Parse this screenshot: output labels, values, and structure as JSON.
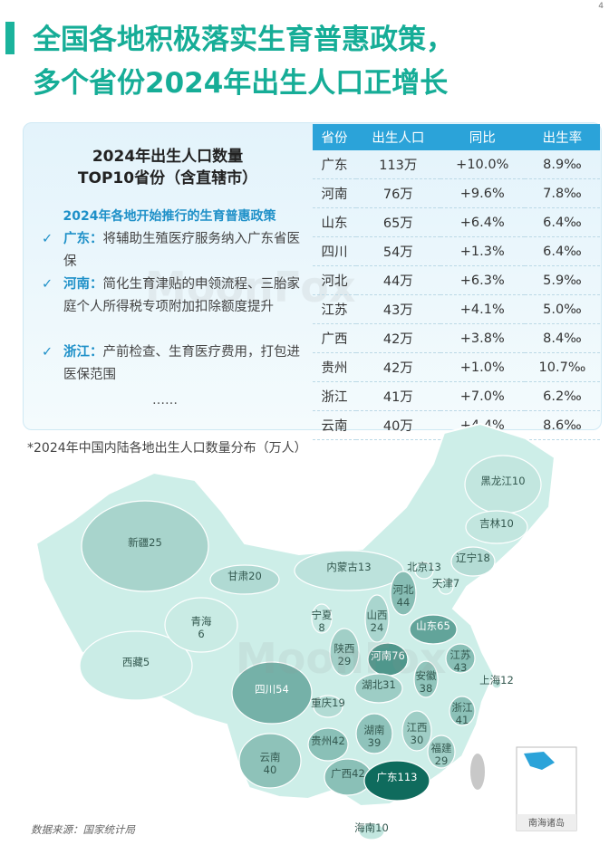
{
  "page_number": "4",
  "header": {
    "title_line1": "全国各地积极落实生育普惠政策，",
    "title_line2": "多个省份2024年出生人口正增长"
  },
  "summary": {
    "title_line1": "2024年出生人口数量",
    "title_line2": "TOP10省份（含直辖市）",
    "policy_heading": "2024年各地开始推行的生育普惠政策",
    "policies": [
      {
        "region": "广东：",
        "text": "将辅助生殖医疗服务纳入广东省医保"
      },
      {
        "region": "河南：",
        "text": "简化生育津贴的申领流程、三胎家庭个人所得税专项附加扣除额度提升"
      },
      {
        "region": "浙江：",
        "text": "产前检查、生育医疗费用，打包进医保范围"
      }
    ],
    "ellipsis": "……"
  },
  "table": {
    "header": [
      "省份",
      "出生人口",
      "同比",
      "出生率"
    ],
    "rows": [
      [
        "广东",
        "113万",
        "+10.0%",
        "8.9‰"
      ],
      [
        "河南",
        "76万",
        "+9.6%",
        "7.8‰"
      ],
      [
        "山东",
        "65万",
        "+6.4%",
        "6.4‰"
      ],
      [
        "四川",
        "54万",
        "+1.3%",
        "6.4‰"
      ],
      [
        "河北",
        "44万",
        "+6.3%",
        "5.9‰"
      ],
      [
        "江苏",
        "43万",
        "+4.1%",
        "5.0‰"
      ],
      [
        "广西",
        "42万",
        "+3.8%",
        "8.4‰"
      ],
      [
        "贵州",
        "42万",
        "+1.0%",
        "10.7‰"
      ],
      [
        "浙江",
        "41万",
        "+7.0%",
        "6.2‰"
      ],
      [
        "云南",
        "40万",
        "+4.4%",
        "8.6‰"
      ]
    ]
  },
  "watermark": "MoonFox",
  "chart_data": {
    "type": "choropleth",
    "title": "*2024年中国内陆各地出生人口数量分布（万人）",
    "color_range": [
      "#d3f2ec",
      "#0f6b5d"
    ],
    "regions": [
      {
        "name": "新疆",
        "value": 25
      },
      {
        "name": "西藏",
        "value": 5
      },
      {
        "name": "青海",
        "value": 6
      },
      {
        "name": "甘肃",
        "value": 20
      },
      {
        "name": "内蒙古",
        "value": 13
      },
      {
        "name": "黑龙江",
        "value": 10
      },
      {
        "name": "吉林",
        "value": 10
      },
      {
        "name": "辽宁",
        "value": 18
      },
      {
        "name": "北京",
        "value": 13
      },
      {
        "name": "天津",
        "value": 7
      },
      {
        "name": "河北",
        "value": 44
      },
      {
        "name": "山西",
        "value": 24
      },
      {
        "name": "宁夏",
        "value": 8
      },
      {
        "name": "陕西",
        "value": 29
      },
      {
        "name": "山东",
        "value": 65
      },
      {
        "name": "河南",
        "value": 76
      },
      {
        "name": "江苏",
        "value": 43
      },
      {
        "name": "安徽",
        "value": 38
      },
      {
        "name": "上海",
        "value": 12
      },
      {
        "name": "湖北",
        "value": 31
      },
      {
        "name": "四川",
        "value": 54
      },
      {
        "name": "重庆",
        "value": 19
      },
      {
        "name": "浙江",
        "value": 41
      },
      {
        "name": "湖南",
        "value": 39
      },
      {
        "name": "江西",
        "value": 30
      },
      {
        "name": "贵州",
        "value": 42
      },
      {
        "name": "福建",
        "value": 29
      },
      {
        "name": "云南",
        "value": 40
      },
      {
        "name": "广西",
        "value": 42
      },
      {
        "name": "广东",
        "value": 113
      },
      {
        "name": "海南",
        "value": 10
      }
    ],
    "inset_label": "南海诸岛"
  },
  "source": "数据来源：国家统计局"
}
